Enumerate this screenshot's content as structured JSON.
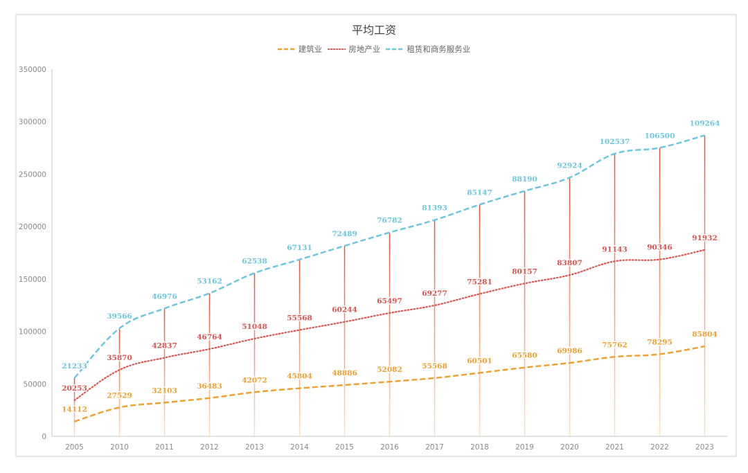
{
  "chart_data": {
    "type": "line",
    "stacked": true,
    "title": "平均工资",
    "xlabel": "",
    "ylabel": "",
    "categories": [
      "2005",
      "2010",
      "2011",
      "2012",
      "2013",
      "2014",
      "2015",
      "2016",
      "2017",
      "2018",
      "2019",
      "2020",
      "2021",
      "2022",
      "2023"
    ],
    "ylim": [
      0,
      350000
    ],
    "yticks": [
      "0",
      "50000",
      "100000",
      "150000",
      "200000",
      "250000",
      "300000",
      "350000"
    ],
    "grid": false,
    "legend": "top",
    "series": [
      {
        "name": "建筑业",
        "color": "#f0a030",
        "dash": "dashed",
        "values": [
          14112,
          27529,
          32103,
          36483,
          42072,
          45804,
          48886,
          52082,
          55568,
          60501,
          65580,
          69986,
          75762,
          78295,
          85804
        ]
      },
      {
        "name": "房地产业",
        "color": "#d9534f",
        "dash": "dotted",
        "values": [
          20253,
          35870,
          42837,
          46764,
          51048,
          55568,
          60244,
          65497,
          69277,
          75281,
          80157,
          83807,
          91143,
          90346,
          91932
        ]
      },
      {
        "name": "租赁和商务服务业",
        "color": "#6cc6e0",
        "dash": "dashed",
        "values": [
          21233,
          39566,
          46976,
          53162,
          62538,
          67131,
          72489,
          76782,
          81393,
          85147,
          88190,
          92924,
          102537,
          106500,
          109264
        ]
      }
    ],
    "drop_lines": true
  }
}
